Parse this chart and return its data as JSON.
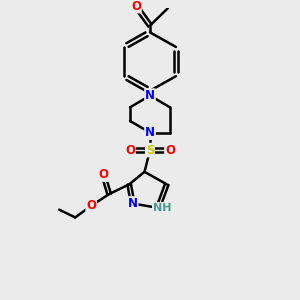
{
  "bg_color": "#ebebeb",
  "bond_color": "#000000",
  "bond_width": 1.8,
  "atom_colors": {
    "O": "#ff0000",
    "N": "#0000ff",
    "S": "#cccc00",
    "H": "#4a9a8a",
    "C": "#000000"
  },
  "font_size": 8.5,
  "fig_width": 3.0,
  "fig_height": 3.0,
  "dpi": 100,
  "xlim": [
    0,
    3.0
  ],
  "ylim": [
    0,
    3.0
  ]
}
